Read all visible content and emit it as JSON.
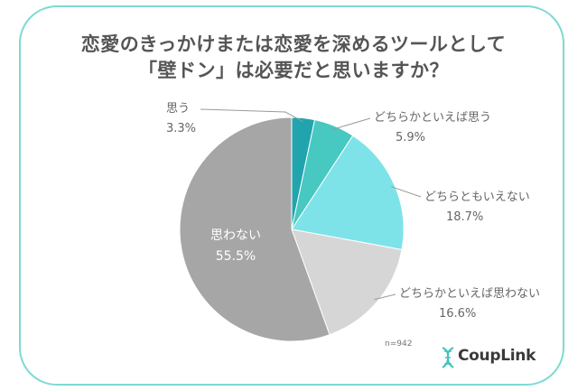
{
  "chart_data": {
    "type": "pie",
    "title_line1": "恋愛のきっかけまたは恋愛を深めるツールとして",
    "title_line2": "「壁ドン」は必要だと思いますか？",
    "slices": [
      {
        "label": "思う",
        "value": 3.3,
        "display": "3.3%",
        "color": "#21a4ad"
      },
      {
        "label": "どちらかといえば思う",
        "value": 5.9,
        "display": "5.9%",
        "color": "#47c8c1"
      },
      {
        "label": "どちらともいえない",
        "value": 18.7,
        "display": "18.7%",
        "color": "#7de3e8"
      },
      {
        "label": "どちらかといえば思わない",
        "value": 16.6,
        "display": "16.6%",
        "color": "#d6d6d6"
      },
      {
        "label": "思わない",
        "value": 55.5,
        "display": "55.5%",
        "color": "#a6a6a6"
      }
    ],
    "sample_note": "n=942",
    "brand": "CoupLink",
    "border_color": "#7ddad3"
  }
}
